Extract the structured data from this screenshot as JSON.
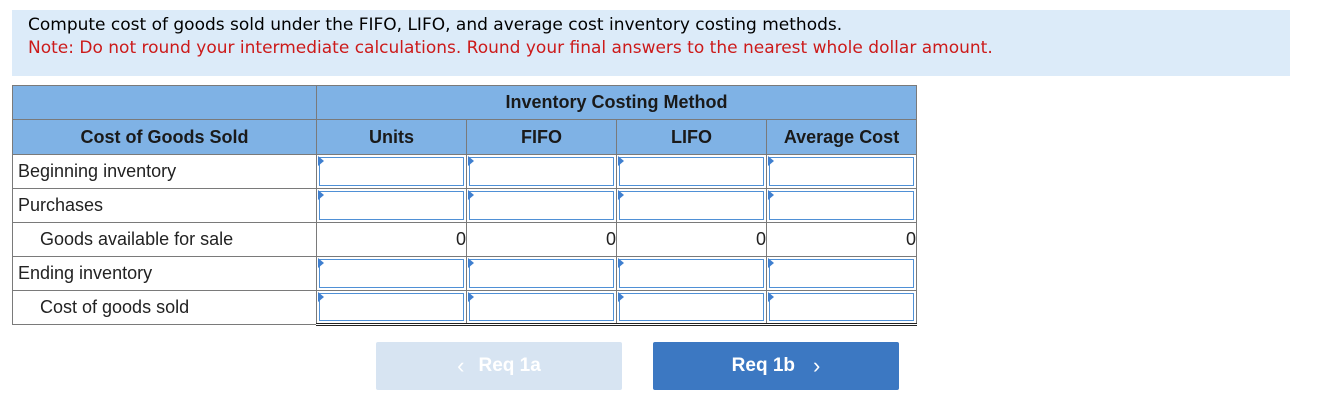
{
  "instructions": {
    "question": "Compute cost of goods sold under the FIFO, LIFO, and average cost inventory costing methods.",
    "note": "Note: Do not round your intermediate calculations. Round your final answers to the nearest whole dollar amount."
  },
  "table": {
    "group_header": "Inventory Costing Method",
    "row_header": "Cost of Goods Sold",
    "columns": [
      "Units",
      "FIFO",
      "LIFO",
      "Average Cost"
    ],
    "rows": [
      {
        "label": "Beginning inventory",
        "indented": false,
        "type": "input",
        "values": [
          "",
          "",
          "",
          ""
        ]
      },
      {
        "label": "Purchases",
        "indented": false,
        "type": "input",
        "values": [
          "",
          "",
          "",
          ""
        ]
      },
      {
        "label": "Goods available for sale",
        "indented": true,
        "type": "computed",
        "values": [
          "0",
          "0",
          "0",
          "0"
        ]
      },
      {
        "label": "Ending inventory",
        "indented": false,
        "type": "input",
        "values": [
          "",
          "",
          "",
          ""
        ]
      },
      {
        "label": "Cost of goods sold",
        "indented": true,
        "type": "input",
        "values": [
          "",
          "",
          "",
          ""
        ]
      }
    ]
  },
  "navigation": {
    "prev_label": "Req 1a",
    "next_label": "Req 1b",
    "prev_chevron": "‹",
    "next_chevron": "›"
  },
  "colors": {
    "instruction_bg": "#dcebf9",
    "note_text": "#cc1a1a",
    "header_bg": "#7fb2e5",
    "input_border": "#4f90d6",
    "next_button_bg": "#3c78c2",
    "prev_button_bg": "#d7e4f2"
  },
  "icons": {
    "prev": "chevron-left-icon",
    "next": "chevron-right-icon",
    "input_marker": "triangle-marker-icon"
  }
}
